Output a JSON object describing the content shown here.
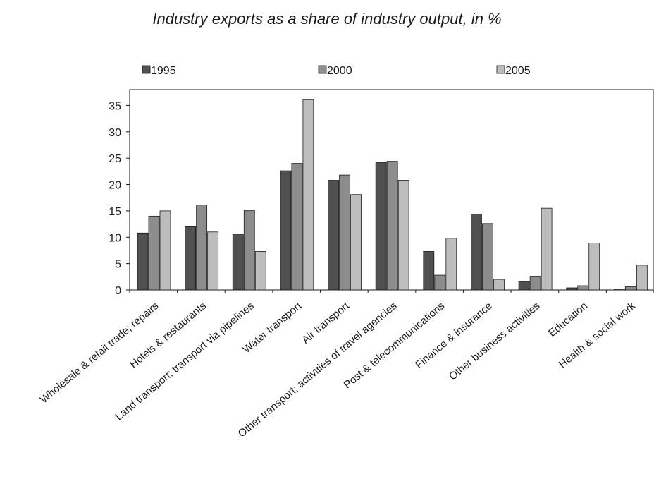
{
  "chart_data": {
    "type": "bar",
    "title": "Industry exports as a share of industry output, in %",
    "xlabel": "",
    "ylabel": "",
    "ylim": [
      0,
      38
    ],
    "yticks": [
      0,
      5,
      10,
      15,
      20,
      25,
      30,
      35
    ],
    "grid": false,
    "legend_position": "top",
    "categories": [
      "Wholesale & retail trade; repairs",
      "Hotels & restaurants",
      "Land transport; transport via pipelines",
      "Water transport",
      "Air transport",
      "Other transport; activities of travel agencies",
      "Post & telecommunications",
      "Finance & insurance",
      "Other business activities",
      "Education",
      "Health & social work"
    ],
    "series": [
      {
        "name": "1995",
        "color": "#505050",
        "values": [
          10.8,
          12.0,
          10.6,
          22.6,
          20.8,
          24.2,
          7.3,
          14.4,
          1.6,
          0.4,
          0.2
        ]
      },
      {
        "name": "2000",
        "color": "#8c8c8c",
        "values": [
          14.0,
          16.1,
          15.1,
          24.0,
          21.8,
          24.4,
          2.8,
          12.6,
          2.6,
          0.8,
          0.6
        ]
      },
      {
        "name": "2005",
        "color": "#bdbdbd",
        "values": [
          15.0,
          11.0,
          7.3,
          36.1,
          18.1,
          20.8,
          9.8,
          2.0,
          15.5,
          8.9,
          4.7
        ]
      }
    ]
  }
}
